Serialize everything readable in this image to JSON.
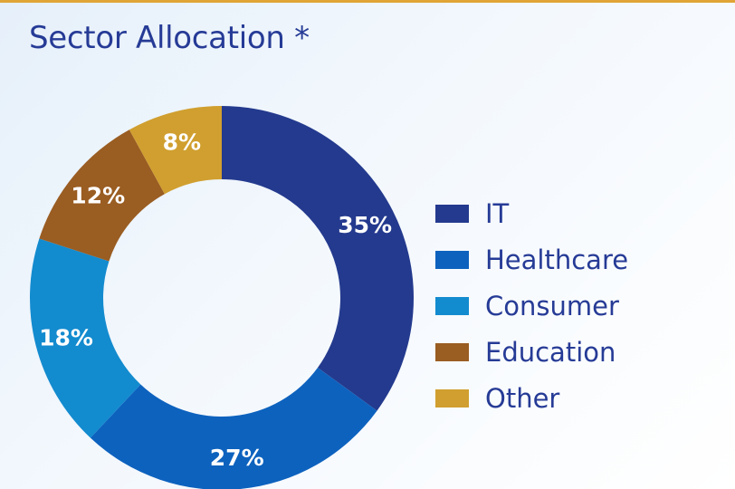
{
  "colors": {
    "accent_rule": "#e0a536",
    "title": "#263b96",
    "legend_text": "#263b96",
    "slice_label": "#ffffff"
  },
  "chart_data": {
    "type": "pie",
    "variant": "donut",
    "title": "Sector Allocation *",
    "start_angle": "12 o'clock, clockwise",
    "legend_position": "right",
    "categories": [
      "IT",
      "Healthcare",
      "Consumer",
      "Education",
      "Other"
    ],
    "values": [
      35,
      27,
      18,
      12,
      8
    ],
    "value_labels": [
      "35%",
      "27%",
      "18%",
      "12%",
      "8%"
    ],
    "colors": [
      "#243a8e",
      "#0d62be",
      "#138bcf",
      "#9a5d22",
      "#d09f2f"
    ]
  }
}
